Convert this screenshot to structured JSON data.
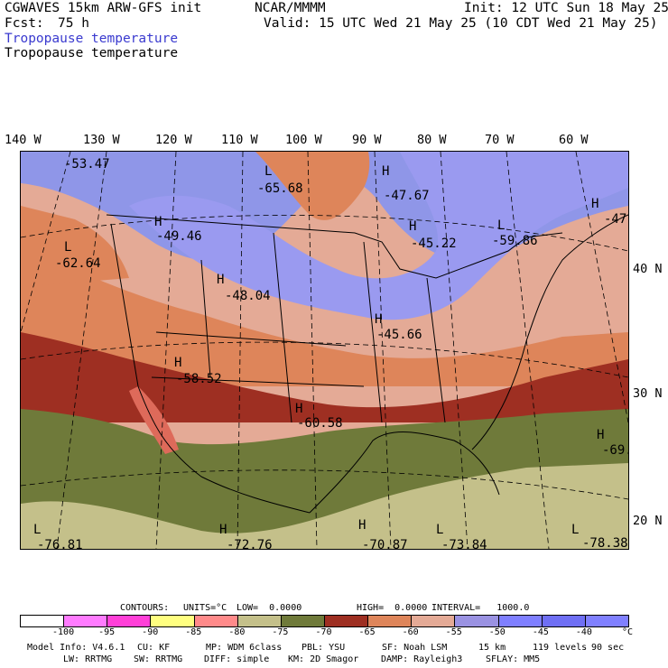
{
  "header": {
    "model": "CGWAVES 15km ARW-GFS init",
    "org": "NCAR/MMMM",
    "init": "Init: 12 UTC Sun 18 May 25",
    "fcst_label": "Fcst:",
    "fcst_value": "75 h",
    "valid": "Valid: 15 UTC Wed 21 May 25 (10 CDT Wed 21 May 25)",
    "field_title_blue": "Tropopause temperature",
    "field_title_black": "Tropopause temperature"
  },
  "longitude_labels": [
    "140 W",
    "130 W",
    "120 W",
    "110 W",
    "100 W",
    "90 W",
    "80 W",
    "70 W",
    "60 W"
  ],
  "latitude_labels": [
    "40 N",
    "30 N",
    "20 N"
  ],
  "map": {
    "highs": [
      {
        "label": "H",
        "value": "-47.67"
      },
      {
        "label": "H",
        "value": "-49.46"
      },
      {
        "label": "H",
        "value": "-45.22"
      },
      {
        "label": "H",
        "value": "-48.04"
      },
      {
        "label": "H",
        "value": "-45.66"
      },
      {
        "label": "H",
        "value": "-58.52"
      },
      {
        "label": "H",
        "value": "-60.58"
      },
      {
        "label": "H",
        "value": "-47."
      },
      {
        "label": "H",
        "value": "-69."
      },
      {
        "label": "H",
        "value": "-72.76"
      },
      {
        "label": "H",
        "value": "-70.87"
      }
    ],
    "lows": [
      {
        "label": "L",
        "value": "-65.68"
      },
      {
        "label": "L",
        "value": "-59.86"
      },
      {
        "label": "L",
        "value": "-62.64"
      },
      {
        "label": "L",
        "value": "-76.81"
      },
      {
        "label": "L",
        "value": "-73.84"
      },
      {
        "label": "L",
        "value": "-78.38"
      }
    ],
    "corner_value": "-53.47"
  },
  "contour_info": {
    "contours_label": "CONTOURS:",
    "units": "UNITS=°C",
    "low": "LOW=  0.0000",
    "high": "HIGH=  0.0000",
    "interval": "INTERVAL=   1000.0"
  },
  "colorbar": {
    "colors": [
      "#ffffff",
      "#ff7bff",
      "#ff40d8",
      "#ffff80",
      "#ff8a8a",
      "#c4c08a",
      "#6f7a3a",
      "#9e2f22",
      "#de855a",
      "#e4aa96",
      "#9a92e2",
      "#7f7fff",
      "#6f6ff4",
      "#8080ff"
    ],
    "ticks": [
      "-100",
      "-95",
      "-90",
      "-85",
      "-80",
      "-75",
      "-70",
      "-65",
      "-60",
      "-55",
      "-50",
      "-45",
      "-40",
      "°C"
    ]
  },
  "footer": {
    "line1": [
      "Model Info: V4.6.1",
      "CU: KF",
      "MP: WDM 6class",
      "PBL: YSU",
      "SF: Noah LSM",
      "15 km",
      "119 levels",
      "90 sec"
    ],
    "line2": [
      "LW: RRTMG",
      "SW: RRTMG",
      "DIFF: simple",
      "KM: 2D Smagor",
      "DAMP: Rayleigh3",
      "SFLAY: MM5"
    ]
  }
}
